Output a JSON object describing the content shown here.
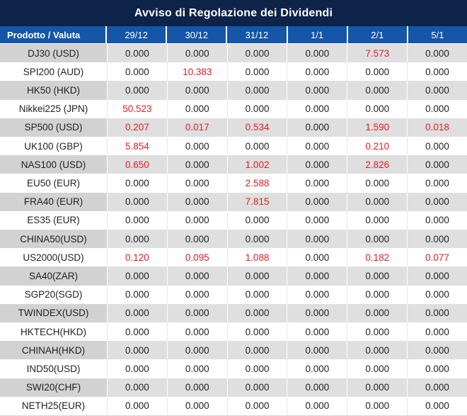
{
  "title": "Avviso di Regolazione dei Dividendi",
  "colors": {
    "title_bg": "#0e2348",
    "header_bg": "#1456a7",
    "red_value": "#e01d24",
    "text": "#1f1f1f",
    "alt_row_product_bg": "#d2d2d2",
    "alt_row_value_bg": "#dfdfdf"
  },
  "table": {
    "product_header": "Prodotto / Valuta",
    "date_headers": [
      "29/12",
      "30/12",
      "31/12",
      "1/1",
      "2/1",
      "5/1"
    ],
    "rows": [
      {
        "product": "DJ30 (USD)",
        "values": [
          "0.000",
          "0.000",
          "0.000",
          "0.000",
          "7.573",
          "0.000"
        ],
        "red_columns": [
          4
        ]
      },
      {
        "product": "SPI200 (AUD)",
        "values": [
          "0.000",
          "10.383",
          "0.000",
          "0.000",
          "0.000",
          "0.000"
        ],
        "red_columns": [
          1
        ]
      },
      {
        "product": "HK50 (HKD)",
        "values": [
          "0.000",
          "0.000",
          "0.000",
          "0.000",
          "0.000",
          "0.000"
        ],
        "red_columns": []
      },
      {
        "product": "Nikkei225 (JPN)",
        "values": [
          "50.523",
          "0.000",
          "0.000",
          "0.000",
          "0.000",
          "0.000"
        ],
        "red_columns": [
          0
        ]
      },
      {
        "product": "SP500 (USD)",
        "values": [
          "0.207",
          "0.017",
          "0.534",
          "0.000",
          "1.590",
          "0.018"
        ],
        "red_columns": [
          0,
          1,
          2,
          4,
          5
        ]
      },
      {
        "product": "UK100 (GBP)",
        "values": [
          "5.854",
          "0.000",
          "0.000",
          "0.000",
          "0.210",
          "0.000"
        ],
        "red_columns": [
          0,
          4
        ]
      },
      {
        "product": "NAS100 (USD)",
        "values": [
          "0.650",
          "0.000",
          "1.002",
          "0.000",
          "2.826",
          "0.000"
        ],
        "red_columns": [
          0,
          2,
          4
        ]
      },
      {
        "product": "EU50 (EUR)",
        "values": [
          "0.000",
          "0.000",
          "2.588",
          "0.000",
          "0.000",
          "0.000"
        ],
        "red_columns": [
          2
        ]
      },
      {
        "product": "FRA40 (EUR)",
        "values": [
          "0.000",
          "0.000",
          "7.815",
          "0.000",
          "0.000",
          "0.000"
        ],
        "red_columns": [
          2
        ]
      },
      {
        "product": "ES35 (EUR)",
        "values": [
          "0.000",
          "0.000",
          "0.000",
          "0.000",
          "0.000",
          "0.000"
        ],
        "red_columns": []
      },
      {
        "product": "CHINA50(USD)",
        "values": [
          "0.000",
          "0.000",
          "0.000",
          "0.000",
          "0.000",
          "0.000"
        ],
        "red_columns": []
      },
      {
        "product": "US2000(USD)",
        "values": [
          "0.120",
          "0.095",
          "1.088",
          "0.000",
          "0.182",
          "0.077"
        ],
        "red_columns": [
          0,
          1,
          2,
          4,
          5
        ]
      },
      {
        "product": "SA40(ZAR)",
        "values": [
          "0.000",
          "0.000",
          "0.000",
          "0.000",
          "0.000",
          "0.000"
        ],
        "red_columns": []
      },
      {
        "product": "SGP20(SGD)",
        "values": [
          "0.000",
          "0.000",
          "0.000",
          "0.000",
          "0.000",
          "0.000"
        ],
        "red_columns": []
      },
      {
        "product": "TWINDEX(USD)",
        "values": [
          "0.000",
          "0.000",
          "0.000",
          "0.000",
          "0.000",
          "0.000"
        ],
        "red_columns": []
      },
      {
        "product": "HKTECH(HKD)",
        "values": [
          "0.000",
          "0.000",
          "0.000",
          "0.000",
          "0.000",
          "0.000"
        ],
        "red_columns": []
      },
      {
        "product": "CHINAH(HKD)",
        "values": [
          "0.000",
          "0.000",
          "0.000",
          "0.000",
          "0.000",
          "0.000"
        ],
        "red_columns": []
      },
      {
        "product": "IND50(USD)",
        "values": [
          "0.000",
          "0.000",
          "0.000",
          "0.000",
          "0.000",
          "0.000"
        ],
        "red_columns": []
      },
      {
        "product": "SWI20(CHF)",
        "values": [
          "0.000",
          "0.000",
          "0.000",
          "0.000",
          "0.000",
          "0.000"
        ],
        "red_columns": []
      },
      {
        "product": "NETH25(EUR)",
        "values": [
          "0.000",
          "0.000",
          "0.000",
          "0.000",
          "0.000",
          "0.000"
        ],
        "red_columns": []
      }
    ]
  }
}
